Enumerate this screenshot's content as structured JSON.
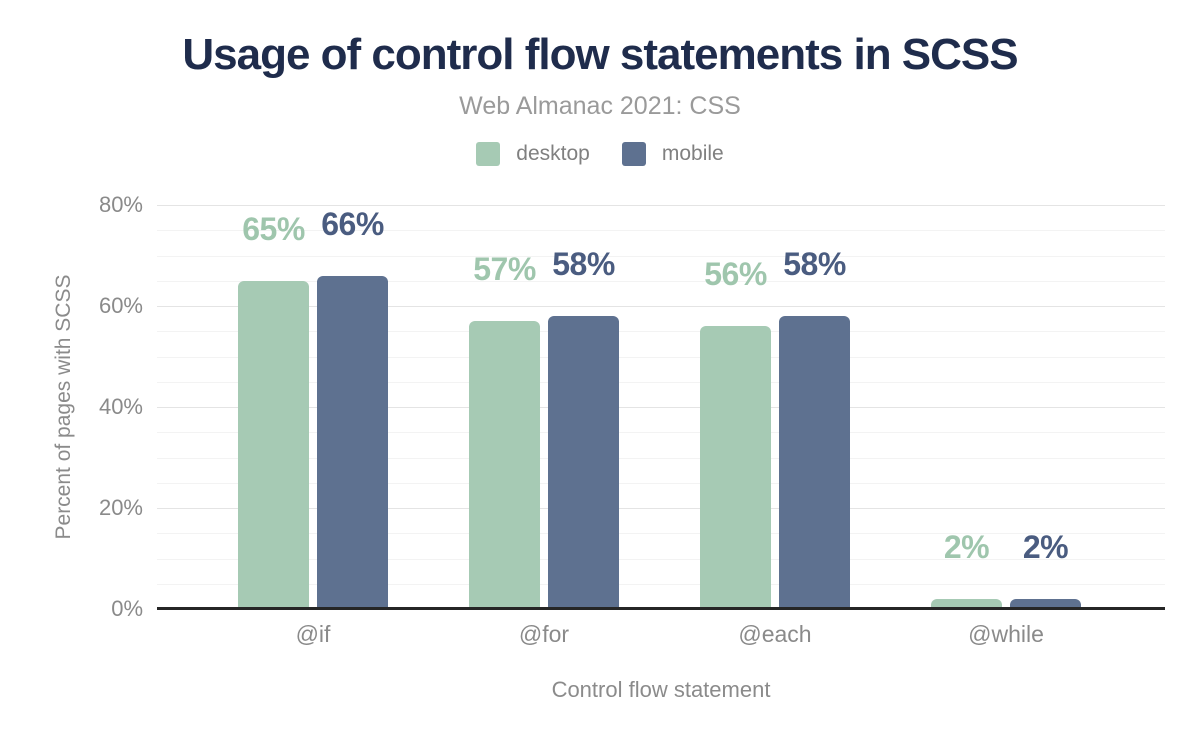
{
  "title": "Usage of control flow statements in SCSS",
  "subtitle": "Web Almanac 2021: CSS",
  "colors": {
    "title": "#1f2c4c",
    "desktop": "#a6cab4",
    "mobile": "#5e7190",
    "desktop_label": "#9fc6ad",
    "mobile_label": "#4a5c80",
    "axis_line": "#262626",
    "muted_text": "#8a8a8a"
  },
  "chart_data": {
    "type": "bar",
    "title": "Usage of control flow statements in SCSS",
    "subtitle": "Web Almanac 2021: CSS",
    "categories": [
      "@if",
      "@for",
      "@each",
      "@while"
    ],
    "series": [
      {
        "name": "desktop",
        "values": [
          65,
          57,
          56,
          2
        ],
        "labels": [
          "65%",
          "57%",
          "56%",
          "2%"
        ],
        "color": "#a6cab4",
        "label_color": "#9fc6ad"
      },
      {
        "name": "mobile",
        "values": [
          66,
          58,
          58,
          2
        ],
        "labels": [
          "66%",
          "58%",
          "58%",
          "2%"
        ],
        "color": "#5e7190",
        "label_color": "#4a5c80"
      }
    ],
    "xlabel": "Control flow statement",
    "ylabel": "Percent of pages with SCSS",
    "ylim": [
      0,
      80
    ],
    "yticks": [
      {
        "value": 0,
        "label": "0%"
      },
      {
        "value": 20,
        "label": "20%"
      },
      {
        "value": 40,
        "label": "40%"
      },
      {
        "value": 60,
        "label": "60%"
      },
      {
        "value": 80,
        "label": "80%"
      }
    ],
    "grid": {
      "major_step": 20,
      "minor_step": 5,
      "gridlines": "on"
    },
    "legend_position": "top"
  }
}
